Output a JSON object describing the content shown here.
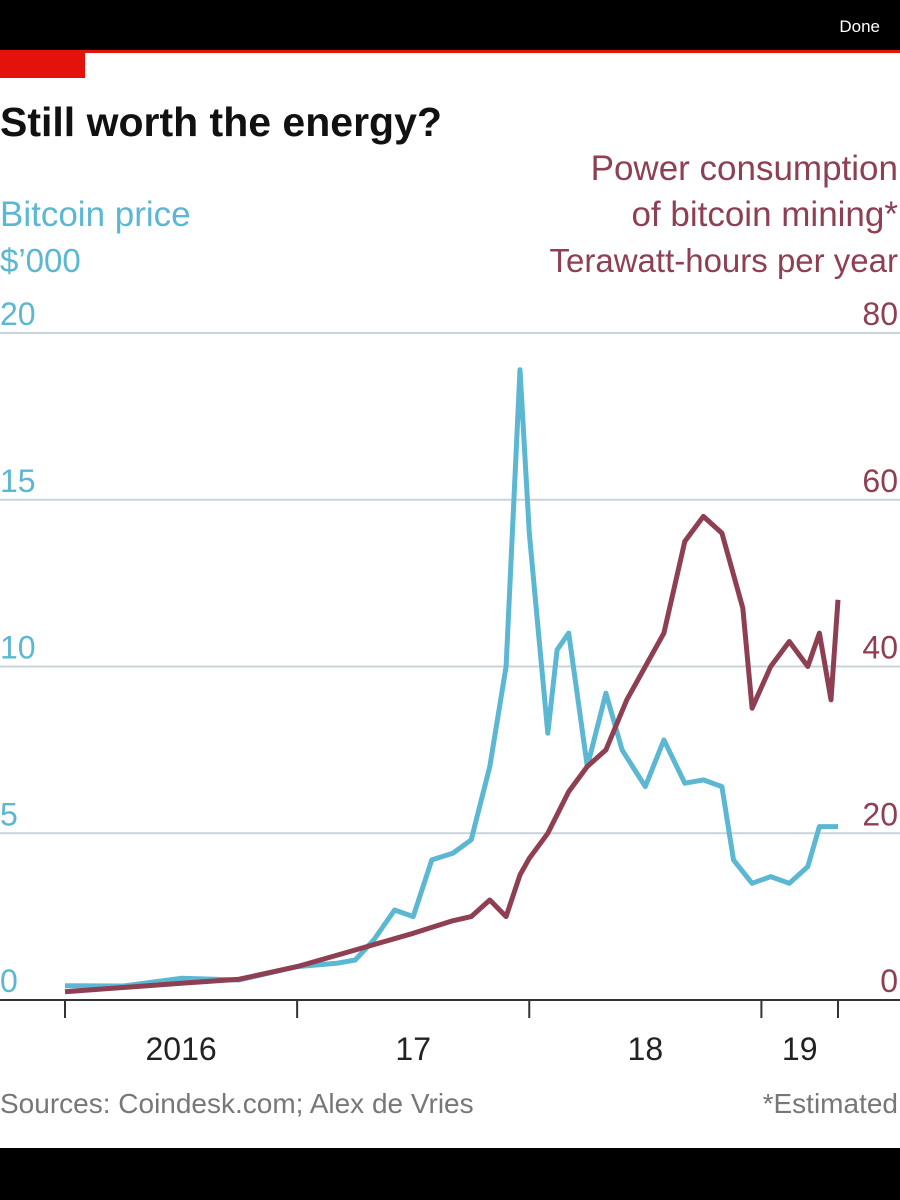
{
  "done_button": "Done",
  "chart_data": {
    "type": "line",
    "title": "Still worth the energy?",
    "y_label": [
      "Bitcoin price",
      "$’000"
    ],
    "y2_label": [
      "Power consumption",
      "of bitcoin mining*",
      "Terawatt-hours per year"
    ],
    "source": "Sources: Coindesk.com; Alex de Vries",
    "note": "*Estimated",
    "xlim": [
      2016,
      2019.33
    ],
    "xticks": [
      {
        "value": 2016,
        "label": "2016"
      },
      {
        "value": 2017,
        "label": "17"
      },
      {
        "value": 2018,
        "label": "18"
      },
      {
        "value": 2019,
        "label": "19"
      }
    ],
    "ylim": [
      0,
      20
    ],
    "yticks": [
      0,
      5,
      10,
      15,
      20
    ],
    "y2lim": [
      0,
      80
    ],
    "y2ticks": [
      0,
      20,
      40,
      60,
      80
    ],
    "grid": true,
    "series": [
      {
        "name": "Bitcoin price",
        "color": "#5bb7d2",
        "x": [
          2016.0,
          2016.25,
          2016.5,
          2016.75,
          2017.0,
          2017.17,
          2017.25,
          2017.33,
          2017.42,
          2017.5,
          2017.58,
          2017.67,
          2017.75,
          2017.83,
          2017.9,
          2017.96,
          2018.0,
          2018.04,
          2018.08,
          2018.12,
          2018.17,
          2018.25,
          2018.33,
          2018.4,
          2018.5,
          2018.58,
          2018.67,
          2018.75,
          2018.83,
          2018.88,
          2018.96,
          2019.04,
          2019.12,
          2019.2,
          2019.25,
          2019.33
        ],
        "values": [
          0.43,
          0.42,
          0.65,
          0.6,
          1.0,
          1.1,
          1.2,
          1.8,
          2.7,
          2.5,
          4.2,
          4.4,
          4.8,
          7.0,
          10.0,
          18.9,
          14.0,
          11.0,
          8.0,
          10.5,
          11.0,
          7.0,
          9.2,
          7.5,
          6.4,
          7.8,
          6.5,
          6.6,
          6.4,
          4.2,
          3.5,
          3.7,
          3.5,
          4.0,
          5.2,
          5.2
        ]
      },
      {
        "name": "Power consumption of bitcoin mining",
        "color": "#8f3f52",
        "axis": "y2",
        "x": [
          2016.0,
          2016.5,
          2016.75,
          2017.0,
          2017.25,
          2017.5,
          2017.67,
          2017.75,
          2017.83,
          2017.9,
          2017.96,
          2018.0,
          2018.08,
          2018.17,
          2018.25,
          2018.33,
          2018.42,
          2018.5,
          2018.58,
          2018.67,
          2018.75,
          2018.83,
          2018.92,
          2018.96,
          2019.04,
          2019.12,
          2019.2,
          2019.25,
          2019.3,
          2019.33
        ],
        "values": [
          1,
          2,
          2.5,
          4,
          6,
          8,
          9.5,
          10,
          12,
          10,
          15,
          17,
          20,
          25,
          28,
          30,
          36,
          40,
          44,
          55,
          58,
          56,
          47,
          35,
          40,
          43,
          40,
          44,
          36,
          48
        ]
      }
    ]
  }
}
